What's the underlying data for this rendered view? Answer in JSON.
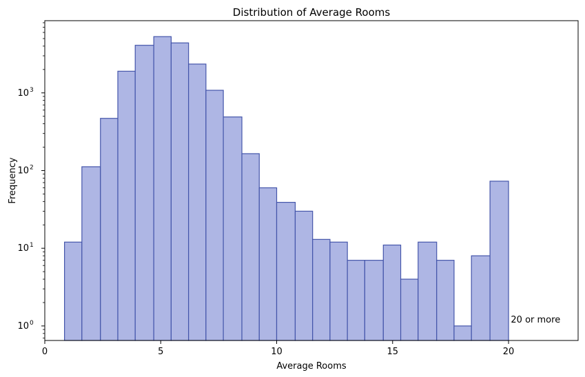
{
  "chart_data": {
    "type": "bar",
    "title": "Distribution of Average Rooms",
    "xlabel": "Average Rooms",
    "ylabel": "Frequency",
    "yscale": "log",
    "xlim": [
      0,
      23
    ],
    "ylim": [
      0.65,
      8500
    ],
    "xticks": [
      0,
      5,
      10,
      15,
      20
    ],
    "yticks": [
      {
        "value": 1,
        "base": "10",
        "exp": "0"
      },
      {
        "value": 10,
        "base": "10",
        "exp": "1"
      },
      {
        "value": 100,
        "base": "10",
        "exp": "2"
      },
      {
        "value": 1000,
        "base": "10",
        "exp": "3"
      }
    ],
    "bar_color": "#aeb6e4",
    "edge_color": "#4455aa",
    "bins": [
      {
        "x0": 0.85,
        "x1": 1.6,
        "count": 12
      },
      {
        "x0": 1.6,
        "x1": 2.4,
        "count": 112
      },
      {
        "x0": 2.4,
        "x1": 3.15,
        "count": 470
      },
      {
        "x0": 3.15,
        "x1": 3.9,
        "count": 1900
      },
      {
        "x0": 3.9,
        "x1": 4.7,
        "count": 4100
      },
      {
        "x0": 4.7,
        "x1": 5.45,
        "count": 5300
      },
      {
        "x0": 5.45,
        "x1": 6.2,
        "count": 4400
      },
      {
        "x0": 6.2,
        "x1": 6.95,
        "count": 2350
      },
      {
        "x0": 6.95,
        "x1": 7.7,
        "count": 1080
      },
      {
        "x0": 7.7,
        "x1": 8.5,
        "count": 490
      },
      {
        "x0": 8.5,
        "x1": 9.25,
        "count": 165
      },
      {
        "x0": 9.25,
        "x1": 10.0,
        "count": 60
      },
      {
        "x0": 10.0,
        "x1": 10.8,
        "count": 39
      },
      {
        "x0": 10.8,
        "x1": 11.55,
        "count": 30
      },
      {
        "x0": 11.55,
        "x1": 12.3,
        "count": 13
      },
      {
        "x0": 12.3,
        "x1": 13.05,
        "count": 12
      },
      {
        "x0": 13.05,
        "x1": 13.8,
        "count": 7
      },
      {
        "x0": 13.8,
        "x1": 14.6,
        "count": 7
      },
      {
        "x0": 14.6,
        "x1": 15.35,
        "count": 11
      },
      {
        "x0": 15.35,
        "x1": 16.1,
        "count": 4
      },
      {
        "x0": 16.1,
        "x1": 16.9,
        "count": 12
      },
      {
        "x0": 16.9,
        "x1": 17.65,
        "count": 7
      },
      {
        "x0": 17.65,
        "x1": 18.4,
        "count": 1
      },
      {
        "x0": 18.4,
        "x1": 19.2,
        "count": 8
      },
      {
        "x0": 19.2,
        "x1": 20.0,
        "count": 73
      }
    ],
    "annotation": {
      "text": "20 or more",
      "x": 20.1,
      "y": 1.1
    }
  }
}
